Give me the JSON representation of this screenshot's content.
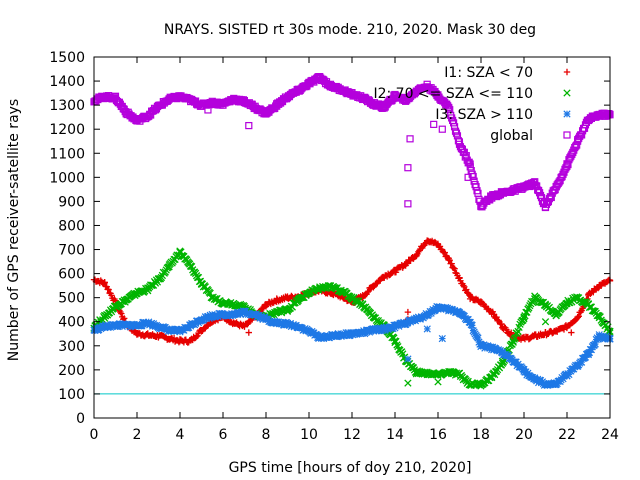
{
  "chart_data": {
    "type": "scatter",
    "title": "NRAYS. SISTED rt 30s mode. 210, 2020. Mask 30 deg",
    "xlabel": "GPS time [hours of doy 210, 2020]",
    "ylabel": "Number of GPS receiver-satellite rays",
    "xlim": [
      0,
      24
    ],
    "ylim": [
      0,
      1500
    ],
    "xticks": [
      0,
      2,
      4,
      6,
      8,
      10,
      12,
      14,
      16,
      18,
      20,
      22,
      24
    ],
    "yticks": [
      0,
      100,
      200,
      300,
      400,
      500,
      600,
      700,
      800,
      900,
      1000,
      1100,
      1200,
      1300,
      1400,
      1500
    ],
    "legend_position": "top-right",
    "reference_line": {
      "y": 100,
      "color": "#00c8c8"
    },
    "series": [
      {
        "name": "I1: SZA < 70",
        "color": "#e60000",
        "marker": "plus",
        "points": [
          [
            0,
            575
          ],
          [
            0.5,
            560
          ],
          [
            1,
            480
          ],
          [
            1.5,
            390
          ],
          [
            2,
            350
          ],
          [
            2.5,
            345
          ],
          [
            3,
            340
          ],
          [
            3.5,
            330
          ],
          [
            4,
            320
          ],
          [
            4.5,
            320
          ],
          [
            5,
            365
          ],
          [
            5.5,
            405
          ],
          [
            6,
            420
          ],
          [
            6.5,
            395
          ],
          [
            7,
            380
          ],
          [
            7.5,
            420
          ],
          [
            8,
            470
          ],
          [
            8.5,
            490
          ],
          [
            9,
            500
          ],
          [
            9.5,
            505
          ],
          [
            10,
            520
          ],
          [
            10.5,
            530
          ],
          [
            11,
            520
          ],
          [
            11.5,
            505
          ],
          [
            12,
            480
          ],
          [
            12.5,
            505
          ],
          [
            13,
            550
          ],
          [
            13.5,
            590
          ],
          [
            14,
            610
          ],
          [
            14.5,
            640
          ],
          [
            15,
            680
          ],
          [
            15.5,
            740
          ],
          [
            16,
            720
          ],
          [
            16.5,
            660
          ],
          [
            17,
            580
          ],
          [
            17.5,
            500
          ],
          [
            18,
            480
          ],
          [
            18.5,
            440
          ],
          [
            19,
            380
          ],
          [
            19.5,
            340
          ],
          [
            20,
            330
          ],
          [
            20.5,
            340
          ],
          [
            21,
            350
          ],
          [
            21.5,
            360
          ],
          [
            22,
            380
          ],
          [
            22.5,
            420
          ],
          [
            23,
            510
          ],
          [
            23.5,
            550
          ],
          [
            24,
            570
          ]
        ],
        "outliers": [
          [
            7.2,
            355
          ],
          [
            14.6,
            410
          ],
          [
            14.6,
            440
          ],
          [
            22.2,
            355
          ]
        ]
      },
      {
        "name": "I2: 70 <= SZA <= 110",
        "color": "#00b400",
        "marker": "cross",
        "points": [
          [
            0,
            380
          ],
          [
            0.5,
            420
          ],
          [
            1,
            465
          ],
          [
            1.5,
            490
          ],
          [
            2,
            520
          ],
          [
            2.5,
            535
          ],
          [
            3,
            575
          ],
          [
            3.5,
            630
          ],
          [
            4,
            690
          ],
          [
            4.5,
            630
          ],
          [
            5,
            560
          ],
          [
            5.5,
            500
          ],
          [
            6,
            480
          ],
          [
            6.5,
            475
          ],
          [
            7,
            460
          ],
          [
            7.5,
            430
          ],
          [
            8,
            420
          ],
          [
            8.5,
            440
          ],
          [
            9,
            450
          ],
          [
            9.5,
            490
          ],
          [
            10,
            520
          ],
          [
            10.5,
            540
          ],
          [
            11,
            545
          ],
          [
            11.5,
            530
          ],
          [
            12,
            500
          ],
          [
            12.5,
            470
          ],
          [
            13,
            420
          ],
          [
            13.5,
            380
          ],
          [
            14,
            320
          ],
          [
            14.5,
            240
          ],
          [
            15,
            190
          ],
          [
            15.5,
            185
          ],
          [
            16,
            180
          ],
          [
            16.5,
            190
          ],
          [
            17,
            180
          ],
          [
            17.5,
            140
          ],
          [
            18,
            140
          ],
          [
            18.5,
            170
          ],
          [
            19,
            230
          ],
          [
            19.5,
            320
          ],
          [
            20,
            420
          ],
          [
            20.5,
            500
          ],
          [
            21,
            470
          ],
          [
            21.5,
            430
          ],
          [
            22,
            480
          ],
          [
            22.5,
            500
          ],
          [
            23,
            470
          ],
          [
            23.5,
            420
          ],
          [
            24,
            360
          ]
        ],
        "outliers": [
          [
            14.6,
            145
          ],
          [
            16,
            150
          ],
          [
            21,
            400
          ]
        ]
      },
      {
        "name": "I3: SZA > 110",
        "color": "#1e78e6",
        "marker": "star",
        "points": [
          [
            0,
            365
          ],
          [
            0.5,
            380
          ],
          [
            1,
            385
          ],
          [
            1.5,
            385
          ],
          [
            2,
            385
          ],
          [
            2.5,
            395
          ],
          [
            3,
            380
          ],
          [
            3.5,
            365
          ],
          [
            4,
            360
          ],
          [
            4.5,
            385
          ],
          [
            5,
            410
          ],
          [
            5.5,
            425
          ],
          [
            6,
            430
          ],
          [
            6.5,
            430
          ],
          [
            7,
            440
          ],
          [
            7.5,
            430
          ],
          [
            8,
            410
          ],
          [
            8.5,
            395
          ],
          [
            9,
            390
          ],
          [
            9.5,
            380
          ],
          [
            10,
            360
          ],
          [
            10.5,
            335
          ],
          [
            11,
            340
          ],
          [
            11.5,
            345
          ],
          [
            12,
            350
          ],
          [
            12.5,
            355
          ],
          [
            13,
            365
          ],
          [
            13.5,
            370
          ],
          [
            14,
            380
          ],
          [
            14.5,
            395
          ],
          [
            15,
            410
          ],
          [
            15.5,
            430
          ],
          [
            16,
            460
          ],
          [
            16.5,
            450
          ],
          [
            17,
            440
          ],
          [
            17.5,
            395
          ],
          [
            18,
            300
          ],
          [
            18.5,
            290
          ],
          [
            19,
            270
          ],
          [
            19.5,
            240
          ],
          [
            20,
            195
          ],
          [
            20.5,
            160
          ],
          [
            21,
            140
          ],
          [
            21.5,
            140
          ],
          [
            22,
            180
          ],
          [
            22.5,
            220
          ],
          [
            23,
            270
          ],
          [
            23.5,
            340
          ],
          [
            24,
            330
          ]
        ],
        "outliers": [
          [
            14.6,
            245
          ],
          [
            15.5,
            370
          ],
          [
            16.2,
            330
          ]
        ]
      },
      {
        "name": "global",
        "color": "#b400dc",
        "marker": "square",
        "points": [
          [
            0,
            1320
          ],
          [
            0.5,
            1335
          ],
          [
            1,
            1330
          ],
          [
            1.5,
            1270
          ],
          [
            2,
            1235
          ],
          [
            2.5,
            1255
          ],
          [
            3,
            1295
          ],
          [
            3.5,
            1325
          ],
          [
            4,
            1335
          ],
          [
            4.5,
            1320
          ],
          [
            5,
            1300
          ],
          [
            5.5,
            1310
          ],
          [
            6,
            1305
          ],
          [
            6.5,
            1325
          ],
          [
            7,
            1315
          ],
          [
            7.5,
            1290
          ],
          [
            8,
            1265
          ],
          [
            8.5,
            1300
          ],
          [
            9,
            1335
          ],
          [
            9.5,
            1360
          ],
          [
            10,
            1390
          ],
          [
            10.5,
            1415
          ],
          [
            11,
            1380
          ],
          [
            11.5,
            1365
          ],
          [
            12,
            1345
          ],
          [
            12.5,
            1330
          ],
          [
            13,
            1305
          ],
          [
            13.5,
            1290
          ],
          [
            14,
            1340
          ],
          [
            14.5,
            1320
          ],
          [
            15,
            1360
          ],
          [
            15.5,
            1380
          ],
          [
            16,
            1340
          ],
          [
            16.5,
            1290
          ],
          [
            17,
            1140
          ],
          [
            17.5,
            1050
          ],
          [
            18,
            880
          ],
          [
            18.5,
            920
          ],
          [
            19,
            935
          ],
          [
            19.5,
            945
          ],
          [
            20,
            960
          ],
          [
            20.5,
            975
          ],
          [
            21,
            880
          ],
          [
            21.5,
            960
          ],
          [
            22,
            1050
          ],
          [
            22.5,
            1150
          ],
          [
            23,
            1240
          ],
          [
            23.5,
            1260
          ],
          [
            24,
            1260
          ]
        ],
        "outliers": [
          [
            5.3,
            1280
          ],
          [
            7.2,
            1215
          ],
          [
            14.6,
            890
          ],
          [
            14.6,
            1040
          ],
          [
            14.7,
            1160
          ],
          [
            15.8,
            1220
          ],
          [
            16.2,
            1200
          ],
          [
            17.4,
            1000
          ]
        ]
      }
    ]
  }
}
